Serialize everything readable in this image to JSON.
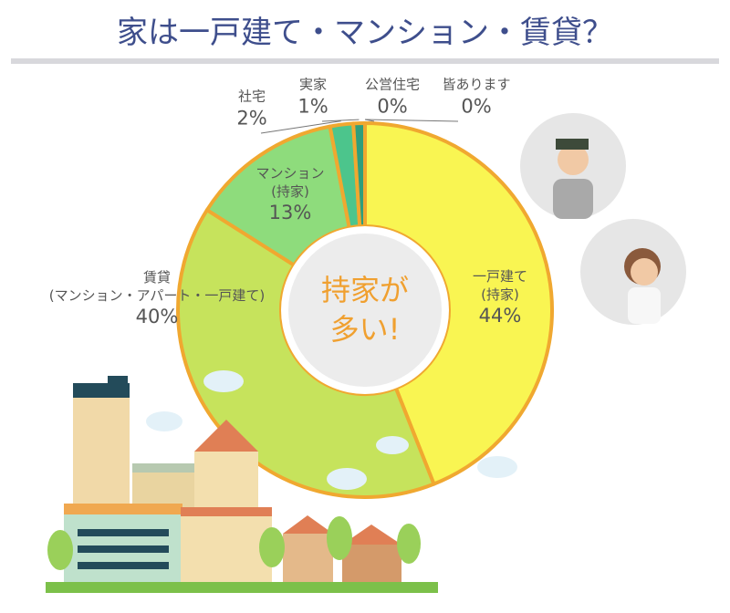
{
  "chart_data": {
    "type": "donut",
    "title": "家は一戸建て・マンション・賃貸？",
    "center_text": [
      "持家が",
      "多い!"
    ],
    "categories": [
      "一戸建て\n(持家)",
      "賃貸\n(マンション・アパート・一戸建て)",
      "マンション\n(持家)",
      "社宅",
      "実家",
      "公営住宅",
      "皆あります"
    ],
    "values": [
      44,
      40,
      13,
      2,
      1,
      0,
      0
    ],
    "value_labels": [
      "44%",
      "40%",
      "13%",
      "2%",
      "1%",
      "0%",
      "0%"
    ],
    "colors": [
      "#f9f552",
      "#c6e35c",
      "#8edc7c",
      "#4cc58c",
      "#2f9e7c",
      "#1f7f74",
      "#176a66"
    ]
  }
}
